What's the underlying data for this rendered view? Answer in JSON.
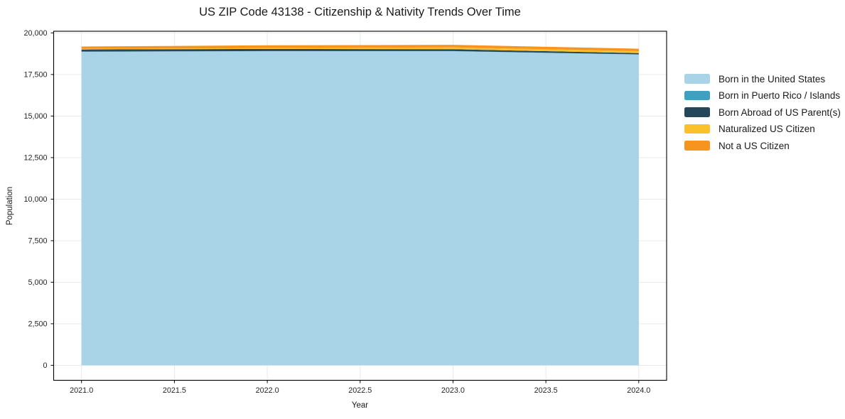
{
  "title": "US ZIP Code 43138 - Citizenship & Nativity Trends Over Time",
  "chart_data": {
    "type": "area",
    "stacked": true,
    "title": "US ZIP Code 43138 - Citizenship & Nativity Trends Over Time",
    "xlabel": "Year",
    "ylabel": "Population",
    "x": [
      2021,
      2022,
      2023,
      2024
    ],
    "series": [
      {
        "name": "Born in the United States",
        "color": "#a9d3e7",
        "values": [
          18870,
          18900,
          18900,
          18700
        ]
      },
      {
        "name": "Born in Puerto Rico / Islands",
        "color": "#3fa0c0",
        "values": [
          10,
          10,
          10,
          10
        ]
      },
      {
        "name": "Born Abroad of US Parent(s)",
        "color": "#24475a",
        "values": [
          120,
          125,
          110,
          75
        ]
      },
      {
        "name": "Naturalized US Citizen",
        "color": "#fbc12c",
        "values": [
          40,
          50,
          110,
          120
        ]
      },
      {
        "name": "Not a US Citizen",
        "color": "#f7941e",
        "values": [
          140,
          170,
          155,
          145
        ]
      }
    ],
    "x_ticks": [
      2021.0,
      2021.5,
      2022.0,
      2022.5,
      2023.0,
      2023.5,
      2024.0
    ],
    "x_tick_labels": [
      "2021.0",
      "2021.5",
      "2022.0",
      "2022.5",
      "2023.0",
      "2023.5",
      "2024.0"
    ],
    "y_ticks": [
      0,
      2500,
      5000,
      7500,
      10000,
      12500,
      15000,
      17500,
      20000
    ],
    "y_tick_labels": [
      "0",
      "2,500",
      "5,000",
      "7,500",
      "10,000",
      "12,500",
      "15,000",
      "17,500",
      "20,000"
    ],
    "xlim": [
      2020.85,
      2024.15
    ],
    "ylim": [
      -900,
      20100
    ],
    "grid": true,
    "legend_position": "right"
  },
  "colors": {
    "background": "#ffffff",
    "grid": "#e7e7e7",
    "spine": "#000000",
    "tick_text": "#262626"
  }
}
